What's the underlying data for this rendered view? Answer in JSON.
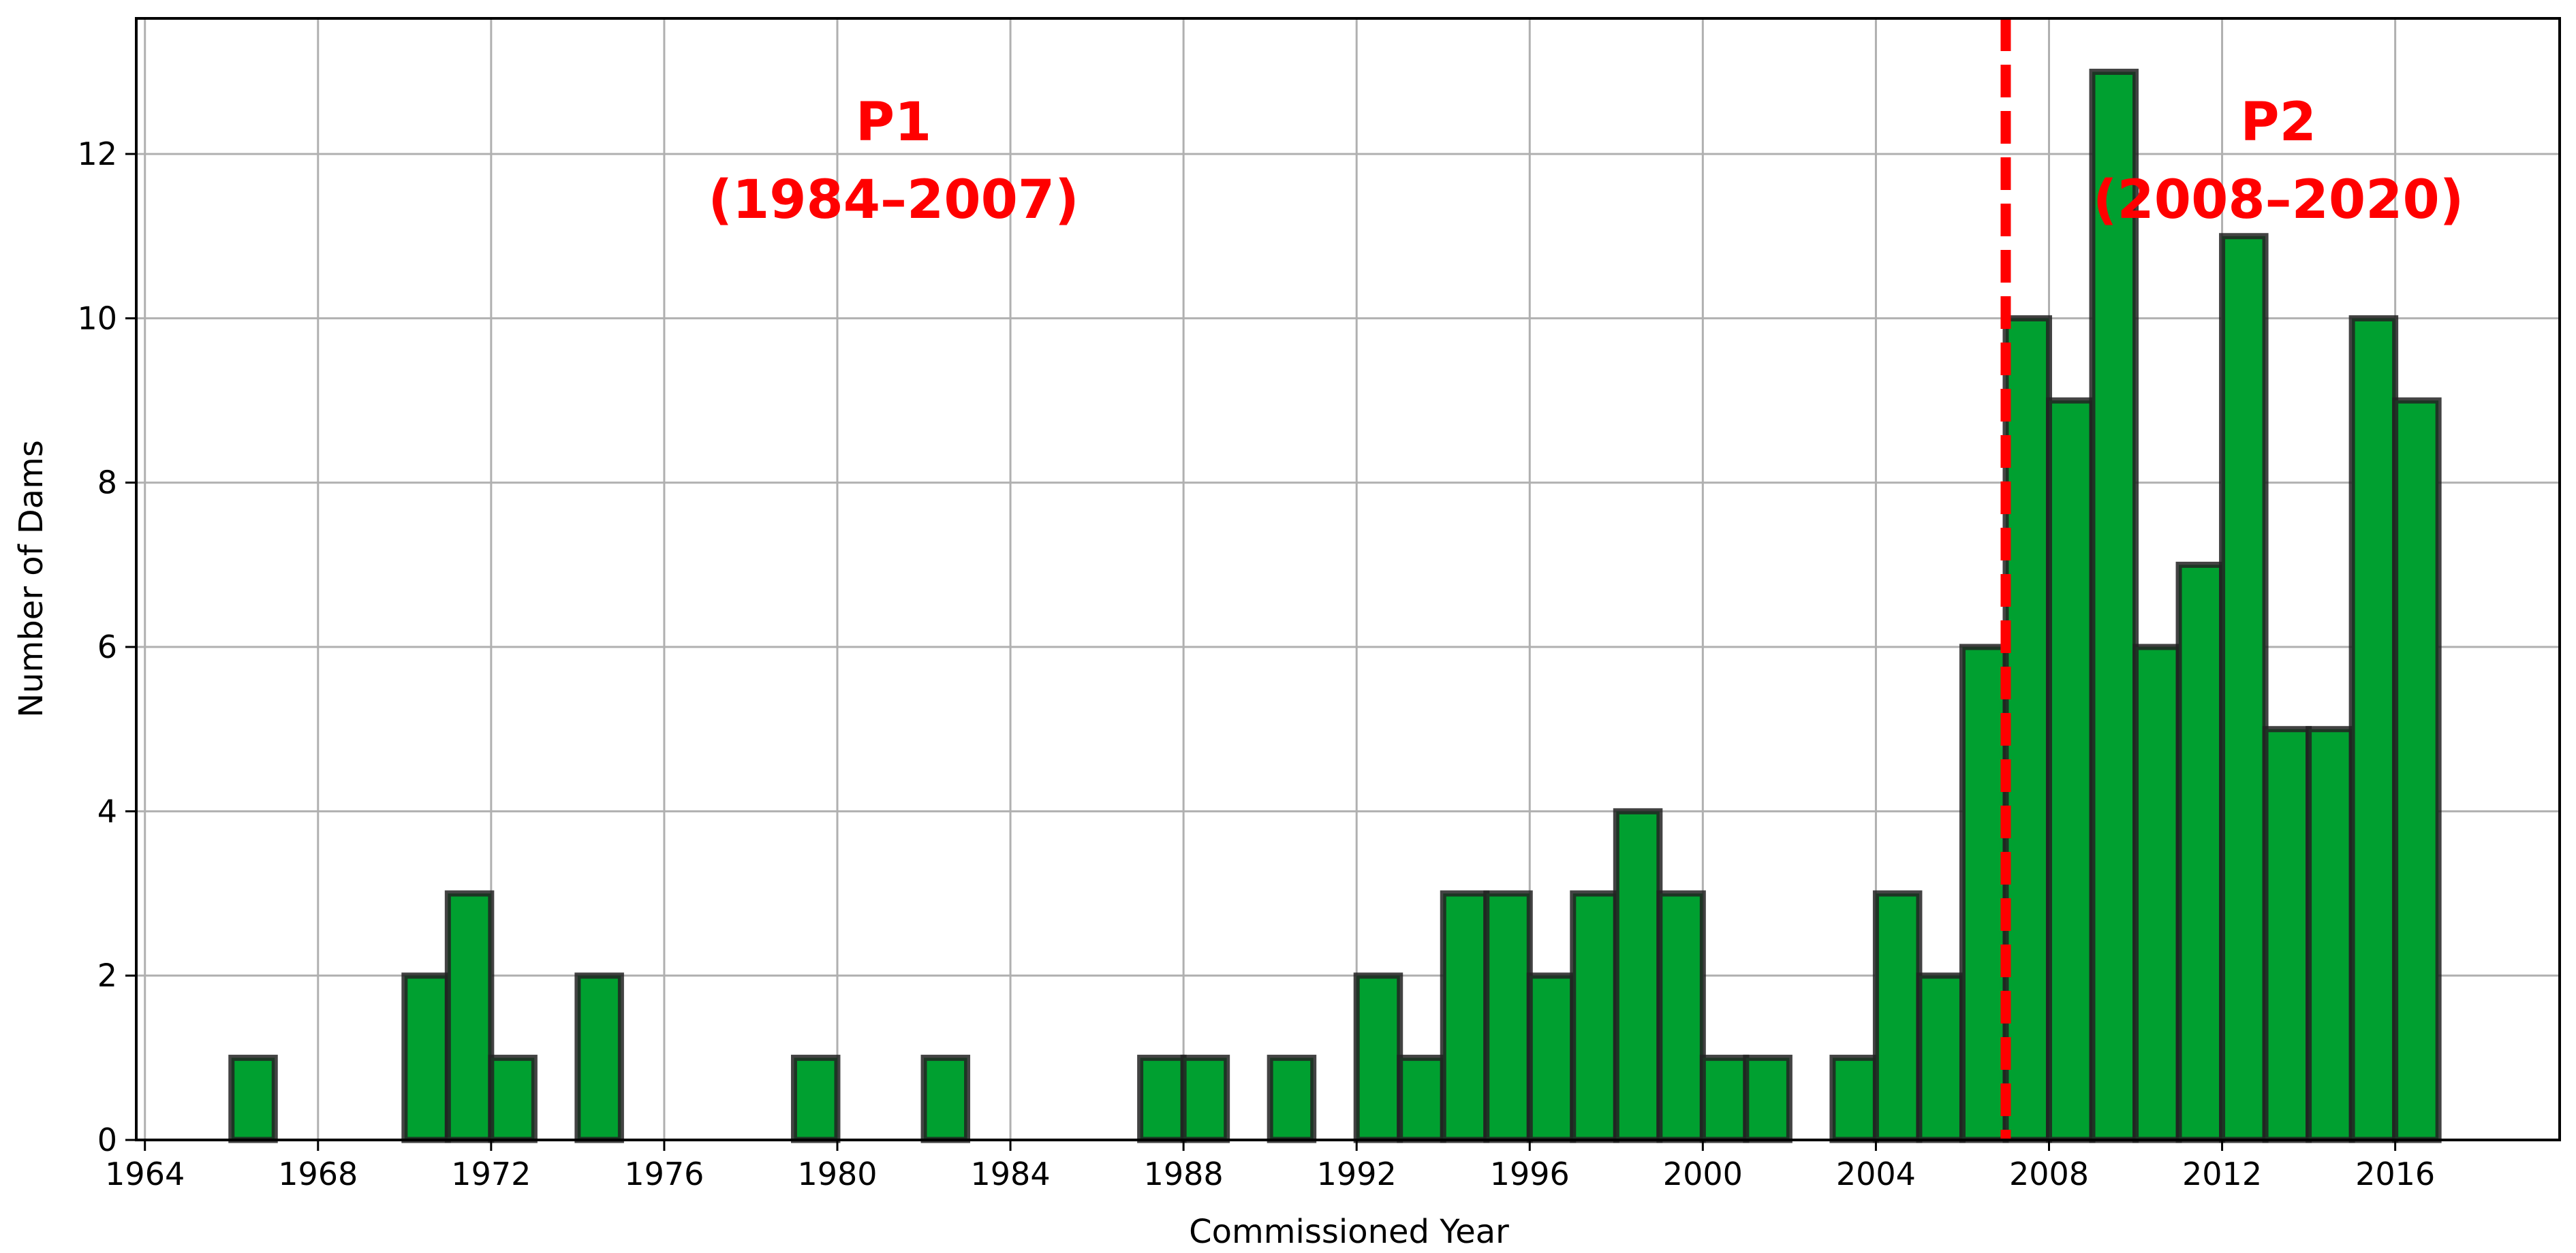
{
  "chart_data": {
    "type": "bar",
    "title": "",
    "xlabel": "Commissioned Year",
    "ylabel": "Number of Dams",
    "xlim": [
      1963.8,
      2019.8
    ],
    "ylim": [
      0,
      13.65
    ],
    "grid": true,
    "bar_color": "#00a030",
    "edge_color": "#222222",
    "x_ticks": [
      1964,
      1968,
      1972,
      1976,
      1980,
      1984,
      1988,
      1992,
      1996,
      2000,
      2004,
      2008,
      2012,
      2016
    ],
    "y_ticks": [
      0,
      2,
      4,
      6,
      8,
      10,
      12
    ],
    "bin_width": 1,
    "series": [
      {
        "x": [
          1966,
          1967,
          1968,
          1969,
          1970,
          1971,
          1972,
          1973,
          1974,
          1975,
          1976,
          1977,
          1978,
          1979,
          1980,
          1981,
          1982,
          1983,
          1984,
          1985,
          1986,
          1987,
          1988,
          1989,
          1990,
          1991,
          1992,
          1993,
          1994,
          1995,
          1996,
          1997,
          1998,
          1999,
          2000,
          2001,
          2002,
          2003,
          2004,
          2005,
          2006,
          2007,
          2008,
          2009,
          2010,
          2011,
          2012,
          2013,
          2014,
          2015,
          2016
        ],
        "values": [
          1,
          0,
          0,
          0,
          2,
          3,
          1,
          0,
          2,
          0,
          0,
          0,
          0,
          1,
          0,
          0,
          1,
          0,
          0,
          0,
          0,
          1,
          1,
          0,
          1,
          0,
          2,
          1,
          3,
          3,
          2,
          3,
          4,
          3,
          1,
          1,
          0,
          1,
          3,
          2,
          6,
          10,
          9,
          13,
          6,
          7,
          11,
          5,
          5,
          10,
          9
        ]
      }
    ],
    "annotations": [
      {
        "text_line1": "P1",
        "text_line2": "(1984–2007)",
        "color": "#ff0000",
        "x": 1981.3,
        "y": 12.4
      },
      {
        "text_line1": "P2",
        "text_line2": "(2008–2020)",
        "color": "#ff0000",
        "x": 2013.3,
        "y": 12.4
      }
    ],
    "divider": {
      "x": 2007,
      "color": "#ff0000",
      "style": "dashed"
    }
  }
}
